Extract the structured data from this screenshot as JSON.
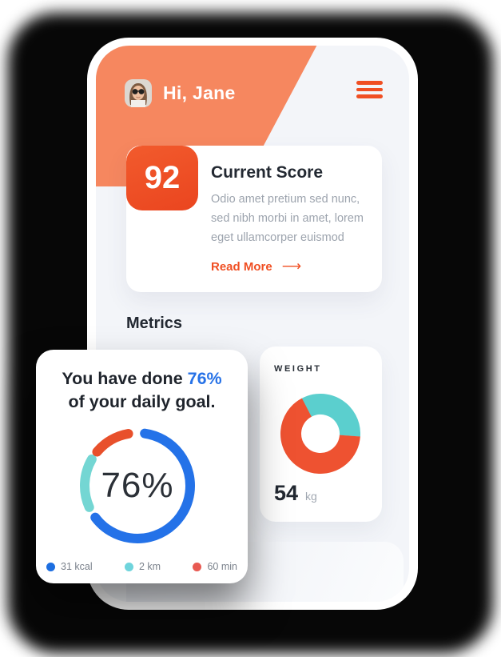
{
  "header": {
    "greeting": "Hi, Jane",
    "accent_color": "#F6875F",
    "menu_color": "#F04F23"
  },
  "score_card": {
    "score": "92",
    "title": "Current Score",
    "body": "Odio amet pretium sed nunc, sed nibh morbi in amet, lorem eget ullamcorper euismod",
    "read_more": "Read More",
    "arrow": "⟶"
  },
  "metrics": {
    "heading": "Metrics"
  },
  "goal_card": {
    "title_prefix": "You have done ",
    "title_highlight": "76%",
    "title_line2": "of your daily goal.",
    "center_value": "76%",
    "highlight_color": "#2772E7"
  },
  "weight_card": {
    "label": "WEIGHT",
    "value": "54",
    "unit": "kg"
  },
  "chart_data": [
    {
      "type": "donut",
      "name": "daily-goal-progress",
      "title": "You have done 76% of your daily goal.",
      "center_label": "76%",
      "percent_complete": 76,
      "legend": [
        {
          "label": "31 kcal",
          "color": "#1D6EE0"
        },
        {
          "label": "2 km",
          "color": "#6FD4DC"
        },
        {
          "label": "60 min",
          "color": "#E85A52"
        }
      ],
      "arcs": [
        {
          "name": "calories",
          "color": "#2472E8",
          "start_deg": 8,
          "sweep_deg": 225
        },
        {
          "name": "distance",
          "color": "#74D6D3",
          "start_deg": 246,
          "sweep_deg": 54
        },
        {
          "name": "minutes",
          "color": "#E8502B",
          "start_deg": 310,
          "sweep_deg": 40
        }
      ]
    },
    {
      "type": "donut",
      "name": "weight",
      "title": "WEIGHT",
      "value": 54,
      "unit": "kg",
      "segments": [
        {
          "name": "secondary",
          "color": "#5BCFCE",
          "start_deg": 332,
          "sweep_deg": 122
        },
        {
          "name": "primary",
          "color": "#EE5231",
          "start_deg": 94,
          "sweep_deg": 238
        }
      ]
    }
  ]
}
